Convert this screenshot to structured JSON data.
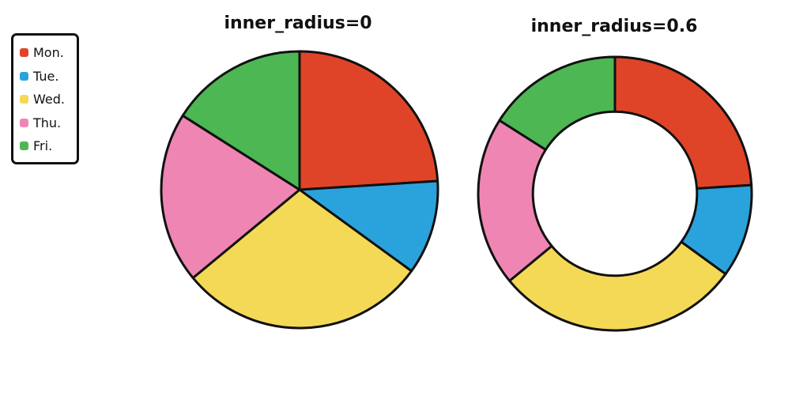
{
  "chart_data": [
    {
      "type": "pie",
      "title": "inner_radius=0",
      "inner_radius": 0,
      "categories": [
        "Mon.",
        "Tue.",
        "Wed.",
        "Thu.",
        "Fri."
      ],
      "values": [
        24,
        11,
        29,
        20,
        16
      ],
      "colors": [
        "#e04428",
        "#2aa3dd",
        "#f4d957",
        "#ef85b3",
        "#4db753"
      ],
      "start": "top",
      "direction": "clockwise"
    },
    {
      "type": "pie",
      "title": "inner_radius=0.6",
      "inner_radius": 0.6,
      "categories": [
        "Mon.",
        "Tue.",
        "Wed.",
        "Thu.",
        "Fri."
      ],
      "values": [
        24,
        11,
        29,
        20,
        16
      ],
      "colors": [
        "#e04428",
        "#2aa3dd",
        "#f4d957",
        "#ef85b3",
        "#4db753"
      ],
      "start": "top",
      "direction": "clockwise"
    }
  ],
  "legend": {
    "position": "top-left",
    "items": [
      {
        "label": "Mon.",
        "color": "#e04428"
      },
      {
        "label": "Tue.",
        "color": "#2aa3dd"
      },
      {
        "label": "Wed.",
        "color": "#f4d957"
      },
      {
        "label": "Thu.",
        "color": "#ef85b3"
      },
      {
        "label": "Fri.",
        "color": "#4db753"
      }
    ]
  }
}
